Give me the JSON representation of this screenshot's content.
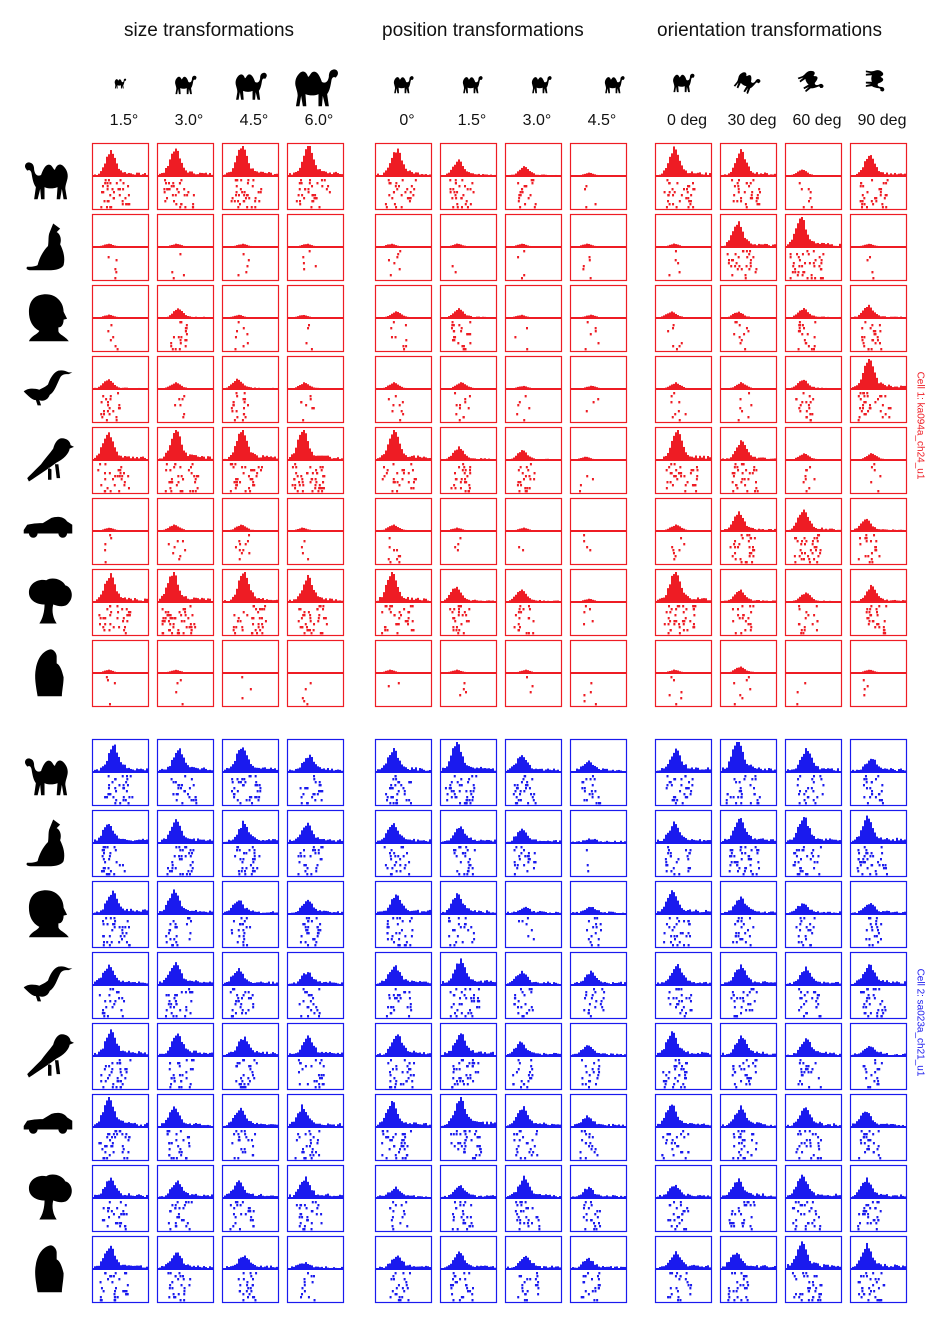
{
  "groups": [
    {
      "title": "size transformations",
      "columns": [
        "1.5°",
        "3.0°",
        "4.5°",
        "6.0°"
      ]
    },
    {
      "title": "position transformations",
      "columns": [
        "0°",
        "1.5°",
        "3.0°",
        "4.5°"
      ]
    },
    {
      "title": "orientation transformations",
      "columns": [
        "0 deg",
        "30 deg",
        "60 deg",
        "90 deg"
      ]
    }
  ],
  "header_icons": [
    "camel-icon-size-1",
    "camel-icon-size-2",
    "camel-icon-size-3",
    "camel-icon-size-4",
    "camel-icon-pos-1",
    "camel-icon-pos-2",
    "camel-icon-pos-3",
    "camel-icon-pos-4",
    "camel-icon-rot-0",
    "camel-icon-rot-30",
    "camel-icon-rot-60",
    "camel-icon-rot-90"
  ],
  "objects": [
    "camel",
    "cat",
    "head",
    "bird-long-neck",
    "bird",
    "car",
    "tree",
    "hand"
  ],
  "cells": [
    {
      "label": "Cell 1: ka094a_ch24_u1",
      "color": "#ee1c24",
      "key": "cell1"
    },
    {
      "label": "Cell 2: sa023a_ch21_u1",
      "color": "#1a1aee",
      "key": "cell2"
    }
  ]
}
